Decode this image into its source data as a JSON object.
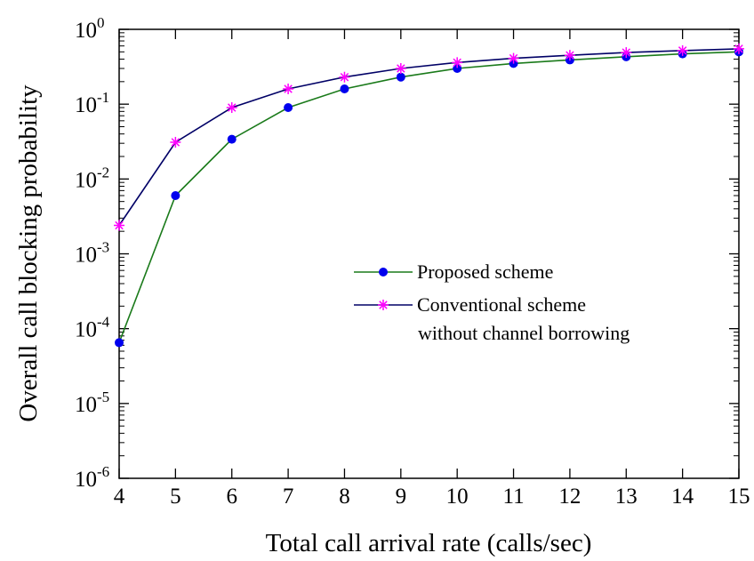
{
  "chart_data": {
    "type": "line",
    "xlabel": "Total call arrival rate (calls/sec)",
    "ylabel": "Overall call blocking  probability",
    "x": [
      4,
      5,
      6,
      7,
      8,
      9,
      10,
      11,
      12,
      13,
      14,
      15
    ],
    "xlim": [
      4,
      15
    ],
    "ylim": [
      1e-06,
      1
    ],
    "y_scale": "log",
    "x_ticks": [
      "4",
      "5",
      "6",
      "7",
      "8",
      "9",
      "10",
      "11",
      "12",
      "13",
      "14",
      "15"
    ],
    "y_ticks": [
      {
        "base": "10",
        "exp": "0",
        "value": 1
      },
      {
        "base": "10",
        "exp": "-1",
        "value": 0.1
      },
      {
        "base": "10",
        "exp": "-2",
        "value": 0.01
      },
      {
        "base": "10",
        "exp": "-3",
        "value": 0.001
      },
      {
        "base": "10",
        "exp": "-4",
        "value": 0.0001
      },
      {
        "base": "10",
        "exp": "-5",
        "value": 1e-05
      },
      {
        "base": "10",
        "exp": "-6",
        "value": 1e-06
      }
    ],
    "grid": false,
    "legend_position": "center-right",
    "series": [
      {
        "name": "Proposed scheme",
        "color": "#1a7a1a",
        "marker": "filled-circle",
        "marker_color": "#0000ee",
        "values": [
          6.5e-05,
          0.006,
          0.034,
          0.09,
          0.16,
          0.23,
          0.3,
          0.35,
          0.39,
          0.43,
          0.47,
          0.5
        ]
      },
      {
        "name": "Conventional scheme",
        "name_line2": "without channel borrowing",
        "color": "#000066",
        "marker": "asterisk",
        "marker_color": "#ff00ff",
        "values": [
          0.0024,
          0.031,
          0.09,
          0.16,
          0.23,
          0.3,
          0.36,
          0.41,
          0.45,
          0.49,
          0.52,
          0.55
        ]
      }
    ]
  }
}
